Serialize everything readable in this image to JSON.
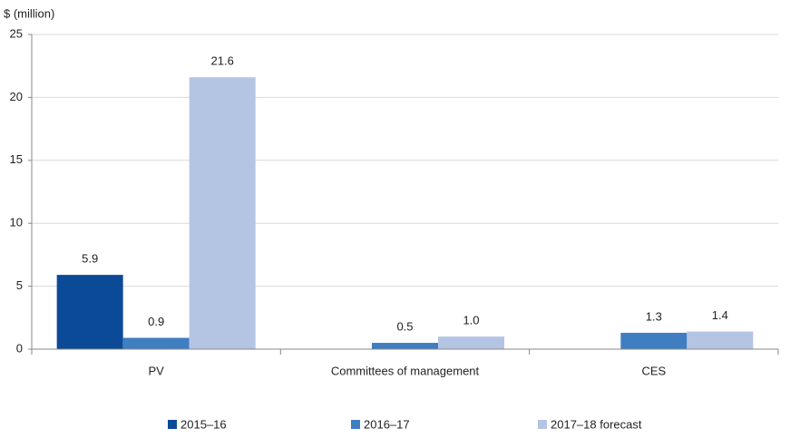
{
  "chart_data": {
    "type": "bar",
    "y_label": "$ (million)",
    "categories": [
      "PV",
      "Committees of management",
      "CES"
    ],
    "series": [
      {
        "name": "2015–16",
        "color": "#0b4a97",
        "values": [
          5.9,
          null,
          null
        ],
        "value_labels": [
          "5.9",
          null,
          null
        ]
      },
      {
        "name": "2016–17",
        "color": "#3f7ec1",
        "values": [
          0.9,
          0.5,
          1.3
        ],
        "value_labels": [
          "0.9",
          "0.5",
          "1.3"
        ]
      },
      {
        "name": "2017–18 forecast",
        "color": "#b4c5e4",
        "values": [
          21.6,
          1.0,
          1.4
        ],
        "value_labels": [
          "21.6",
          "1.0",
          "1.4"
        ]
      }
    ],
    "ylim": [
      0,
      25
    ],
    "yticks": [
      0,
      5,
      10,
      15,
      20,
      25
    ],
    "grid": true,
    "legend": "bottom"
  }
}
